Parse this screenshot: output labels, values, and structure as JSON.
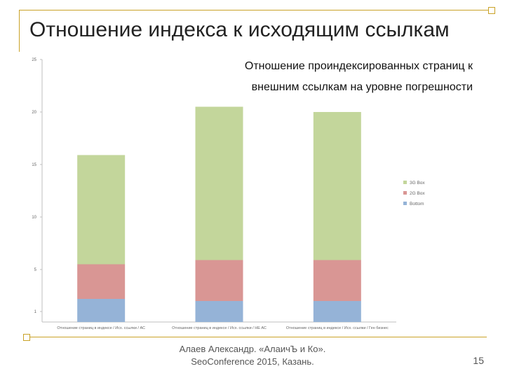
{
  "slide": {
    "title": "Отношение индекса к исходящим ссылкам",
    "footer_line1": "Алаев Александр. «АлаичЪ и Ко».",
    "footer_line2": "SeoConference 2015, Казань.",
    "page_number": "15"
  },
  "chart_data": {
    "type": "bar",
    "stacked": true,
    "title": "Отношение проиндексированных страниц к внешним ссылкам на уровне погрешности",
    "title_line1": "Отношение проиндексированных страниц к",
    "title_line2": "внешним ссылкам на уровне погрешности",
    "categories": [
      "Отношение страниц в индексе / Исх. ссылки / АС",
      "Отношение страниц в индексе / Исх. ссылки / НЕ АС",
      "Отношение страниц в индексе / Исх. ссылки / Ген бизнес"
    ],
    "series": [
      {
        "name": "Bottom",
        "color": "#95b3d7",
        "values": [
          2.2,
          2.0,
          2.0
        ]
      },
      {
        "name": "2G Box",
        "color": "#d99694",
        "values": [
          3.3,
          3.9,
          3.9
        ]
      },
      {
        "name": "3G Box",
        "color": "#c3d69b",
        "values": [
          10.4,
          14.6,
          14.1
        ]
      }
    ],
    "legend_order": [
      "3G Box",
      "2G Box",
      "Bottom"
    ],
    "legend_position": "right",
    "yticks": [
      1,
      5,
      10,
      15,
      20,
      25
    ],
    "ylim": [
      0,
      25
    ],
    "xlabel": "",
    "ylabel": ""
  }
}
